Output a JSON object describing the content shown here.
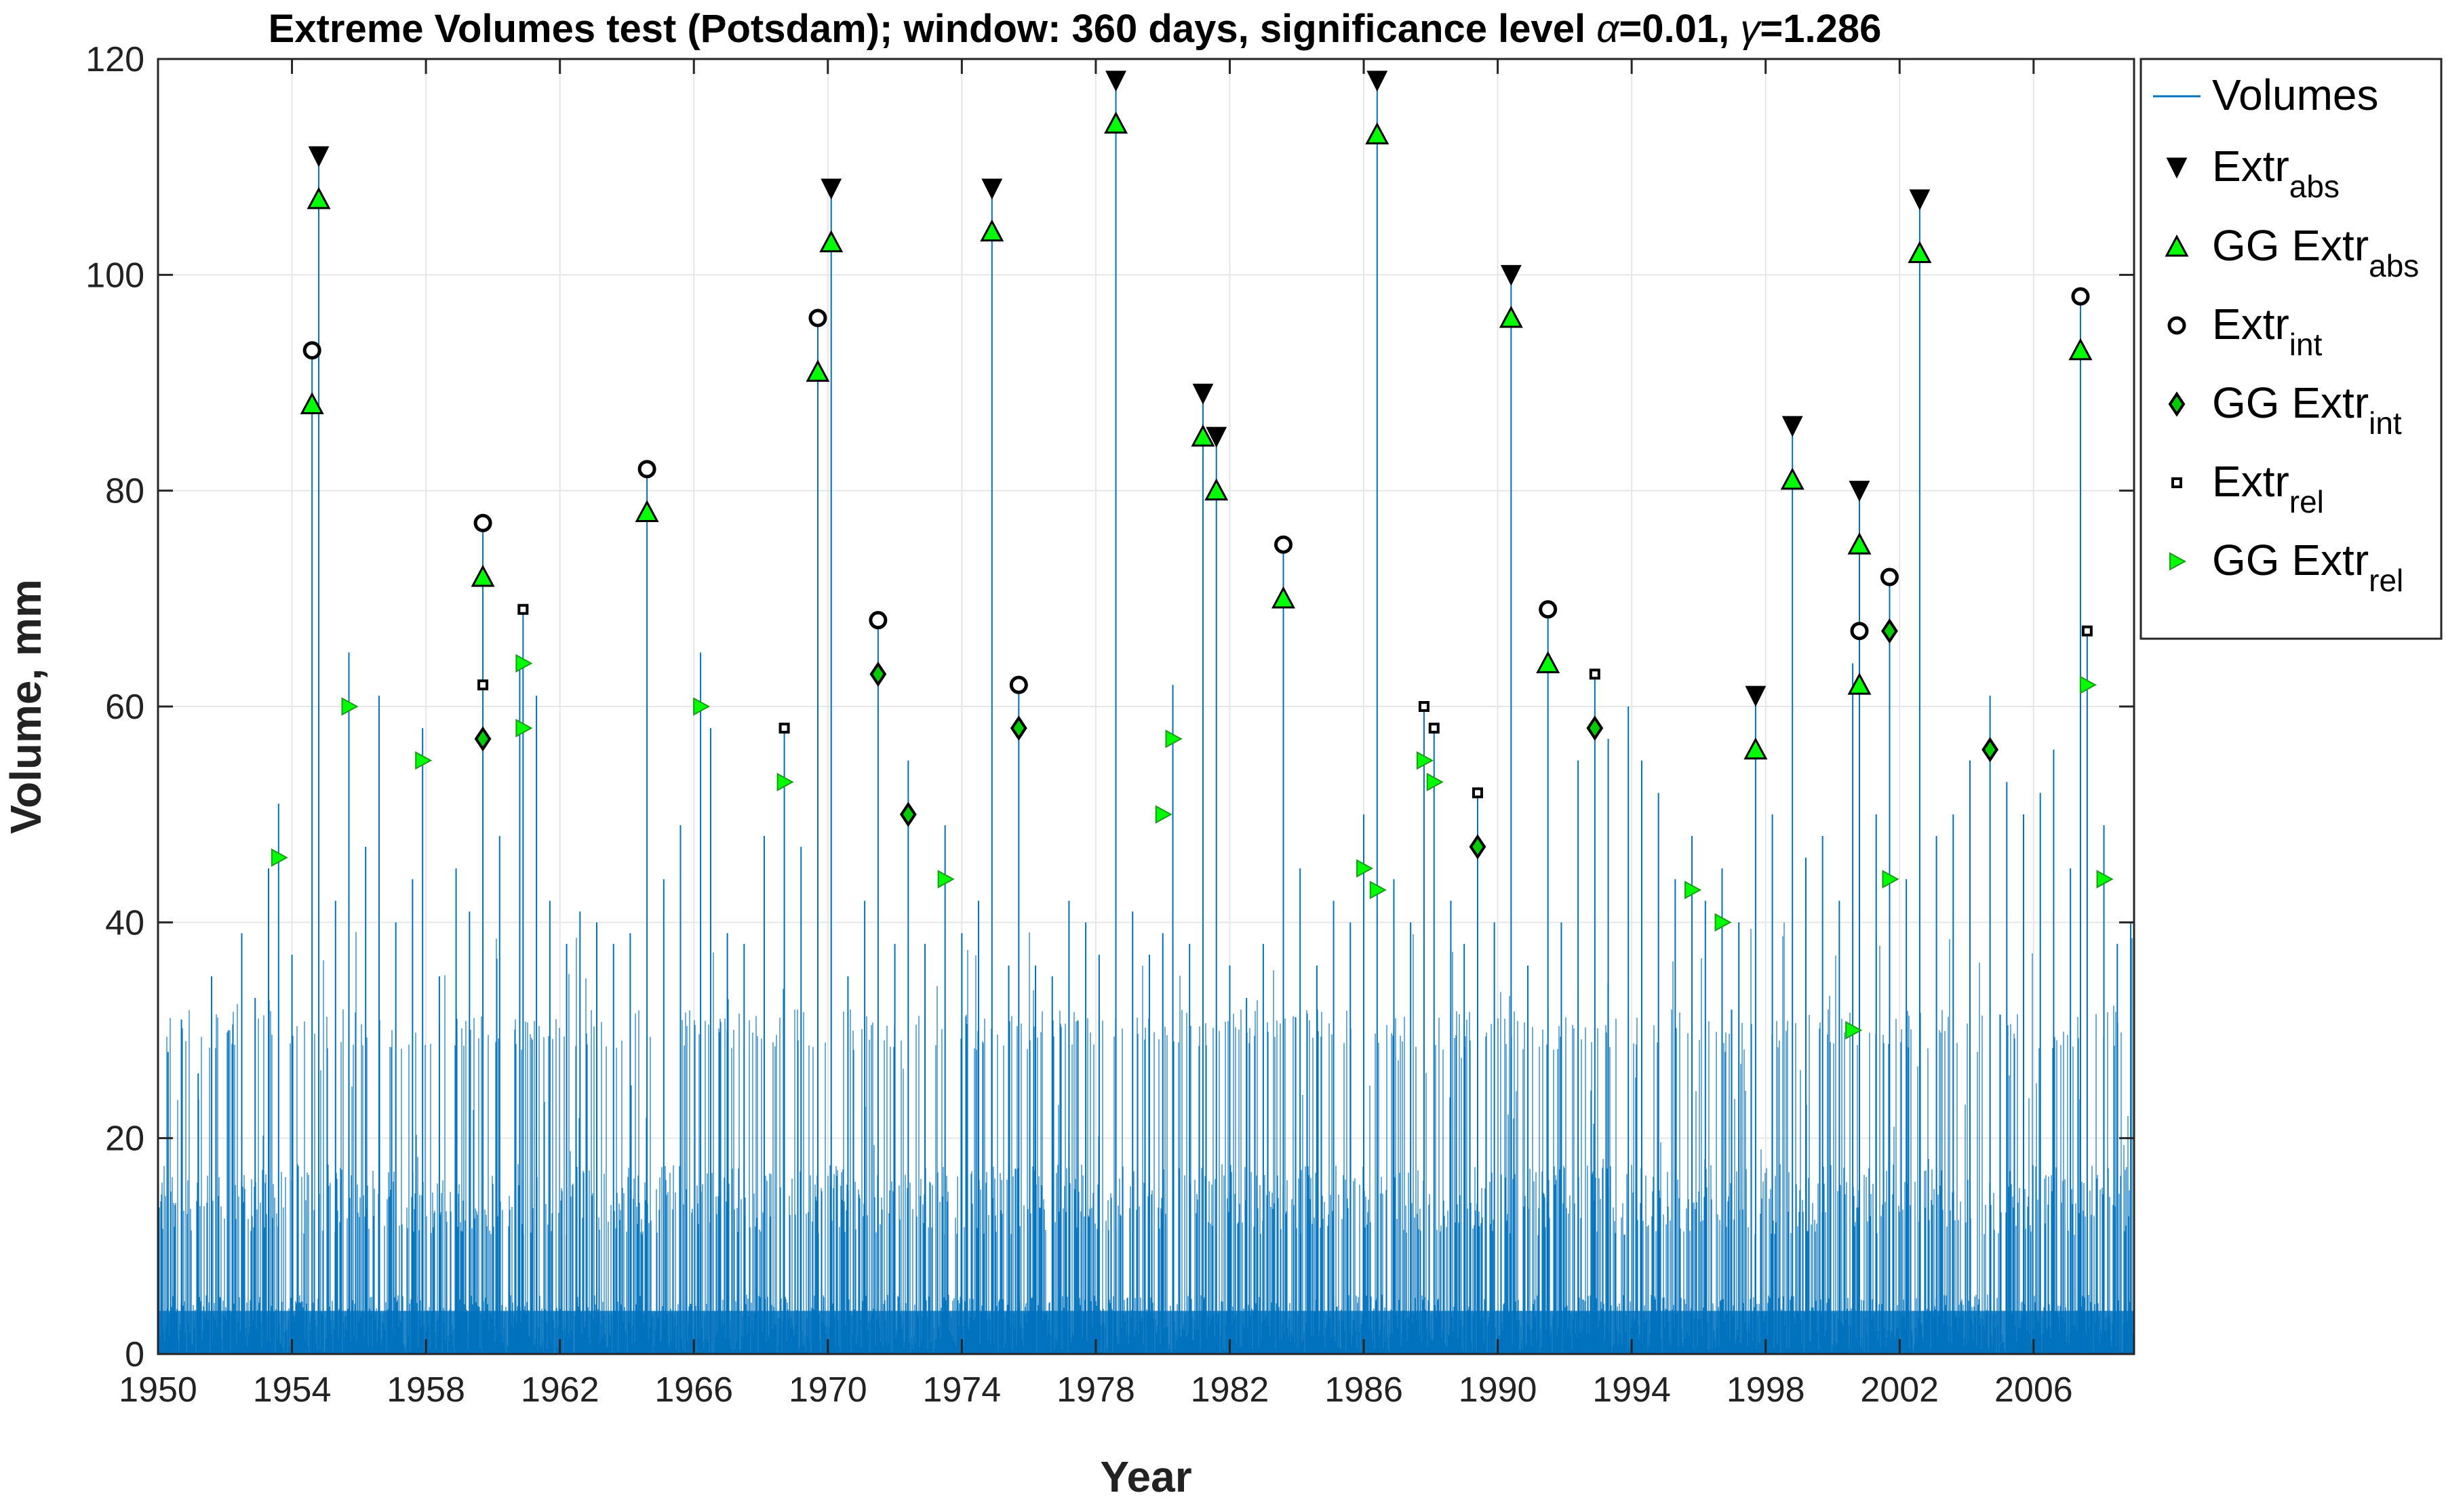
{
  "chart_data": {
    "type": "line",
    "title_prefix": "Extreme Volumes test (Potsdam); window: 360 days, significance level ",
    "title_alpha_symbol": "α",
    "title_alpha_value": "=0.01, ",
    "title_gamma_symbol": "γ",
    "title_gamma_value": "=1.286",
    "xlabel": "Year",
    "ylabel": "Volume, mm",
    "xlim": [
      1950,
      2009
    ],
    "ylim": [
      0,
      120
    ],
    "x_ticks": [
      "1950",
      "1954",
      "1958",
      "1962",
      "1966",
      "1970",
      "1974",
      "1978",
      "1982",
      "1986",
      "1990",
      "1994",
      "1998",
      "2002",
      "2006"
    ],
    "y_ticks": [
      "0",
      "20",
      "40",
      "60",
      "80",
      "100",
      "120"
    ],
    "grid": true,
    "legend_position": "outside-right",
    "colors": {
      "volumes": "#0072BD",
      "extr_abs": "#000000",
      "gg_extr_abs": "#00FF00",
      "extr_int": "#000000",
      "gg_extr_int": "#00CC00",
      "extr_rel": "#000000",
      "gg_extr_rel": "#00FF00"
    },
    "legend": [
      {
        "key": "volumes",
        "label": "Volumes",
        "sub": ""
      },
      {
        "key": "extr_abs",
        "label": "Extr",
        "sub": "abs"
      },
      {
        "key": "gg_extr_abs",
        "label": "GG Extr",
        "sub": "abs"
      },
      {
        "key": "extr_int",
        "label": "Extr",
        "sub": "int"
      },
      {
        "key": "gg_extr_int",
        "label": "GG Extr",
        "sub": "int"
      },
      {
        "key": "extr_rel",
        "label": "Extr",
        "sub": "rel"
      },
      {
        "key": "gg_extr_rel",
        "label": "GG Extr",
        "sub": "rel"
      }
    ],
    "volume_peaks": [
      [
        1950.0,
        32
      ],
      [
        1950.3,
        28
      ],
      [
        1950.7,
        31
      ],
      [
        1951.2,
        26
      ],
      [
        1951.6,
        35
      ],
      [
        1952.1,
        30
      ],
      [
        1952.5,
        39
      ],
      [
        1952.9,
        33
      ],
      [
        1953.3,
        45
      ],
      [
        1953.6,
        51
      ],
      [
        1954.0,
        37
      ],
      [
        1954.6,
        93
      ],
      [
        1954.8,
        111
      ],
      [
        1955.3,
        42
      ],
      [
        1955.7,
        65
      ],
      [
        1956.2,
        47
      ],
      [
        1956.6,
        61
      ],
      [
        1957.1,
        40
      ],
      [
        1957.6,
        44
      ],
      [
        1957.9,
        58
      ],
      [
        1958.4,
        35
      ],
      [
        1958.9,
        45
      ],
      [
        1959.3,
        41
      ],
      [
        1959.7,
        77
      ],
      [
        1960.2,
        48
      ],
      [
        1960.8,
        64
      ],
      [
        1960.9,
        69
      ],
      [
        1961.3,
        61
      ],
      [
        1961.7,
        42
      ],
      [
        1962.2,
        38
      ],
      [
        1962.6,
        41
      ],
      [
        1963.1,
        40
      ],
      [
        1963.6,
        38
      ],
      [
        1964.1,
        39
      ],
      [
        1964.6,
        82
      ],
      [
        1965.1,
        44
      ],
      [
        1965.6,
        49
      ],
      [
        1966.2,
        65
      ],
      [
        1966.5,
        58
      ],
      [
        1967.0,
        39
      ],
      [
        1967.5,
        38
      ],
      [
        1968.1,
        48
      ],
      [
        1968.7,
        58
      ],
      [
        1969.2,
        47
      ],
      [
        1969.7,
        96
      ],
      [
        1970.1,
        108
      ],
      [
        1970.6,
        35
      ],
      [
        1971.1,
        42
      ],
      [
        1971.5,
        68
      ],
      [
        1972.0,
        38
      ],
      [
        1972.4,
        55
      ],
      [
        1972.9,
        38
      ],
      [
        1973.5,
        49
      ],
      [
        1974.0,
        39
      ],
      [
        1974.5,
        42
      ],
      [
        1974.9,
        108
      ],
      [
        1975.4,
        36
      ],
      [
        1975.7,
        62
      ],
      [
        1976.2,
        36
      ],
      [
        1976.7,
        35
      ],
      [
        1977.2,
        42
      ],
      [
        1977.7,
        40
      ],
      [
        1978.1,
        37
      ],
      [
        1978.6,
        118
      ],
      [
        1979.1,
        41
      ],
      [
        1979.6,
        37
      ],
      [
        1980.0,
        39
      ],
      [
        1980.3,
        62
      ],
      [
        1980.8,
        38
      ],
      [
        1981.2,
        89
      ],
      [
        1981.6,
        85
      ],
      [
        1982.0,
        36
      ],
      [
        1982.5,
        33
      ],
      [
        1983.0,
        38
      ],
      [
        1983.6,
        75
      ],
      [
        1984.1,
        45
      ],
      [
        1984.6,
        36
      ],
      [
        1985.1,
        42
      ],
      [
        1985.6,
        40
      ],
      [
        1986.0,
        50
      ],
      [
        1986.4,
        118
      ],
      [
        1986.9,
        44
      ],
      [
        1987.4,
        40
      ],
      [
        1987.8,
        60
      ],
      [
        1988.1,
        58
      ],
      [
        1988.6,
        42
      ],
      [
        1989.0,
        38
      ],
      [
        1989.4,
        52
      ],
      [
        1989.9,
        40
      ],
      [
        1990.4,
        100
      ],
      [
        1990.9,
        36
      ],
      [
        1991.5,
        69
      ],
      [
        1991.9,
        40
      ],
      [
        1992.4,
        55
      ],
      [
        1992.9,
        63
      ],
      [
        1993.3,
        57
      ],
      [
        1993.9,
        60
      ],
      [
        1994.3,
        55
      ],
      [
        1994.8,
        52
      ],
      [
        1995.3,
        44
      ],
      [
        1995.8,
        48
      ],
      [
        1996.2,
        42
      ],
      [
        1996.7,
        45
      ],
      [
        1997.2,
        40
      ],
      [
        1997.7,
        61
      ],
      [
        1998.2,
        50
      ],
      [
        1998.8,
        86
      ],
      [
        1999.2,
        46
      ],
      [
        1999.7,
        48
      ],
      [
        2000.2,
        42
      ],
      [
        2000.6,
        64
      ],
      [
        2000.8,
        80
      ],
      [
        2001.3,
        50
      ],
      [
        2001.7,
        72
      ],
      [
        2002.2,
        44
      ],
      [
        2002.6,
        107
      ],
      [
        2003.1,
        48
      ],
      [
        2003.6,
        50
      ],
      [
        2004.1,
        55
      ],
      [
        2004.7,
        61
      ],
      [
        2005.2,
        53
      ],
      [
        2005.7,
        50
      ],
      [
        2006.2,
        52
      ],
      [
        2006.6,
        56
      ],
      [
        2007.1,
        45
      ],
      [
        2007.4,
        98
      ],
      [
        2007.6,
        67
      ],
      [
        2008.1,
        49
      ],
      [
        2008.5,
        38
      ],
      [
        2008.9,
        40
      ]
    ],
    "extr_abs": [
      [
        1954.8,
        111
      ],
      [
        1970.1,
        108
      ],
      [
        1974.9,
        108
      ],
      [
        1978.6,
        118
      ],
      [
        1981.2,
        89
      ],
      [
        1981.6,
        85
      ],
      [
        1986.4,
        118
      ],
      [
        1990.4,
        100
      ],
      [
        1997.7,
        61
      ],
      [
        1998.8,
        86
      ],
      [
        2000.8,
        80
      ],
      [
        2002.6,
        107
      ]
    ],
    "gg_extr_abs": [
      [
        1954.6,
        88
      ],
      [
        1954.8,
        107
      ],
      [
        1959.7,
        72
      ],
      [
        1964.6,
        78
      ],
      [
        1969.7,
        91
      ],
      [
        1970.1,
        103
      ],
      [
        1974.9,
        104
      ],
      [
        1978.6,
        114
      ],
      [
        1981.2,
        85
      ],
      [
        1981.6,
        80
      ],
      [
        1983.6,
        70
      ],
      [
        1986.4,
        113
      ],
      [
        1990.4,
        96
      ],
      [
        1991.5,
        64
      ],
      [
        1997.7,
        56
      ],
      [
        1998.8,
        81
      ],
      [
        2000.8,
        62
      ],
      [
        2000.8,
        75
      ],
      [
        2002.6,
        102
      ],
      [
        2007.4,
        93
      ]
    ],
    "extr_int": [
      [
        1954.6,
        93
      ],
      [
        1959.7,
        77
      ],
      [
        1964.6,
        82
      ],
      [
        1969.7,
        96
      ],
      [
        1971.5,
        68
      ],
      [
        1975.7,
        62
      ],
      [
        1983.6,
        75
      ],
      [
        1991.5,
        69
      ],
      [
        2000.8,
        67
      ],
      [
        2001.7,
        72
      ],
      [
        2007.4,
        98
      ]
    ],
    "gg_extr_int": [
      [
        1959.7,
        57
      ],
      [
        1971.5,
        63
      ],
      [
        1972.4,
        50
      ],
      [
        1975.7,
        58
      ],
      [
        1989.4,
        47
      ],
      [
        1992.9,
        58
      ],
      [
        2001.7,
        67
      ],
      [
        2004.7,
        56
      ]
    ],
    "extr_rel": [
      [
        1959.7,
        62
      ],
      [
        1960.9,
        69
      ],
      [
        1968.7,
        58
      ],
      [
        1987.8,
        60
      ],
      [
        1988.1,
        58
      ],
      [
        1989.4,
        52
      ],
      [
        1992.9,
        63
      ],
      [
        2007.6,
        67
      ]
    ],
    "gg_extr_rel": [
      [
        1953.6,
        46
      ],
      [
        1955.7,
        60
      ],
      [
        1957.9,
        55
      ],
      [
        1960.9,
        64
      ],
      [
        1960.9,
        58
      ],
      [
        1966.2,
        60
      ],
      [
        1968.7,
        53
      ],
      [
        1973.5,
        44
      ],
      [
        1980.3,
        57
      ],
      [
        1980.0,
        50
      ],
      [
        1986.0,
        45
      ],
      [
        1986.4,
        43
      ],
      [
        1987.8,
        55
      ],
      [
        1988.1,
        53
      ],
      [
        1995.8,
        43
      ],
      [
        1996.7,
        40
      ],
      [
        2000.6,
        30
      ],
      [
        2001.7,
        44
      ],
      [
        2007.6,
        62
      ],
      [
        2008.1,
        44
      ]
    ]
  }
}
